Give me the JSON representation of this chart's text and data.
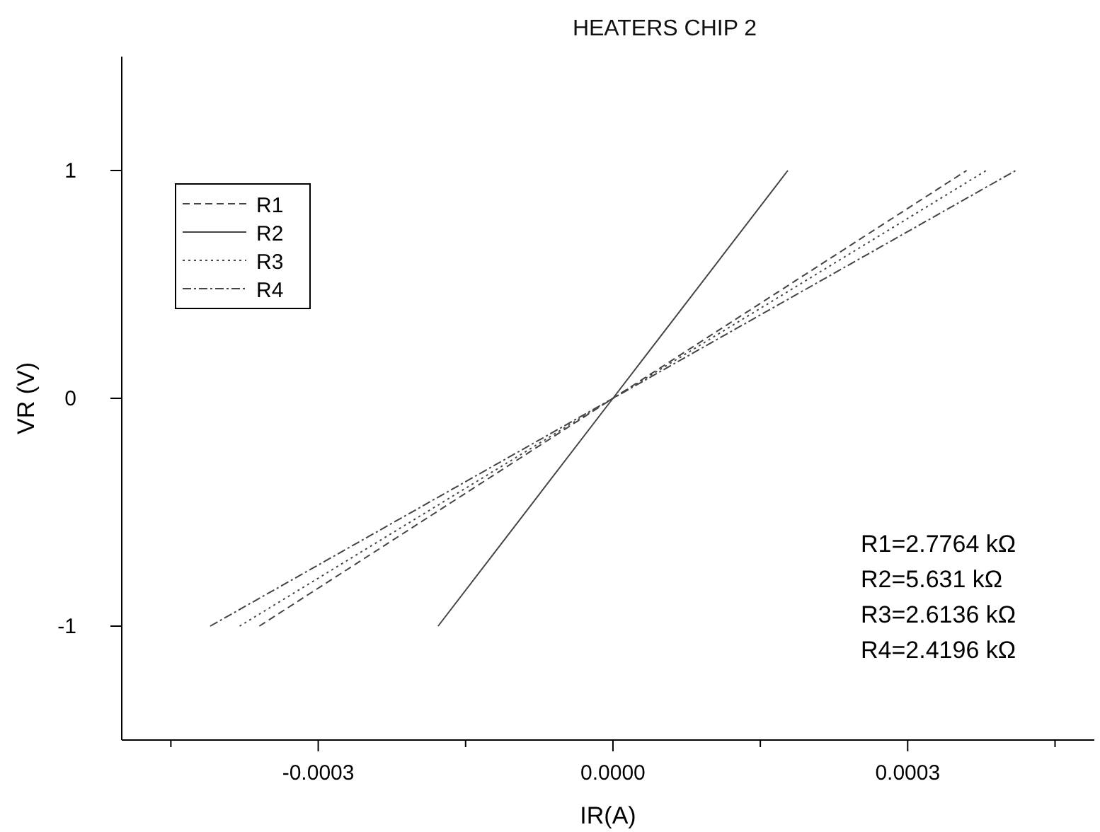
{
  "chart_data": {
    "type": "line",
    "title": "HEATERS CHIP 2",
    "xlabel": "IR(A)",
    "ylabel": "VR (V)",
    "xlim": [
      -0.0005,
      0.00049
    ],
    "xticks": [
      {
        "value": -0.00045,
        "label": null
      },
      {
        "value": -0.0003,
        "label": "-0.0003"
      },
      {
        "value": -0.00015,
        "label": null
      },
      {
        "value": 0,
        "label": "0.0000"
      },
      {
        "value": 0.00015,
        "label": null
      },
      {
        "value": 0.0003,
        "label": "0.0003"
      },
      {
        "value": 0.00045,
        "label": null
      }
    ],
    "ylim": [
      -1.5,
      1.5
    ],
    "yticks": [
      -1,
      0,
      1
    ],
    "series": [
      {
        "name": "R1",
        "color": "#444444",
        "line_style": "dashed",
        "x": [
          -0.00036,
          0,
          0.00036
        ],
        "values": [
          -1,
          0,
          1
        ]
      },
      {
        "name": "R2",
        "color": "#444444",
        "line_style": "solid",
        "x": [
          -0.000178,
          0,
          0.000178
        ],
        "values": [
          -1,
          0,
          1
        ]
      },
      {
        "name": "R3",
        "color": "#444444",
        "line_style": "dotted",
        "x": [
          -0.00038,
          0,
          0.00038
        ],
        "values": [
          -1,
          0,
          1
        ]
      },
      {
        "name": "R4",
        "color": "#444444",
        "line_style": "dashdot",
        "x": [
          -0.00041,
          0,
          0.00041
        ],
        "values": [
          -1,
          0,
          1
        ]
      }
    ],
    "legend": "top left",
    "grid": false,
    "annotations": [
      "R1=2.7764 kΩ",
      "R2=5.631 kΩ",
      "R3=2.6136 kΩ",
      "R4=2.4196 kΩ"
    ]
  }
}
